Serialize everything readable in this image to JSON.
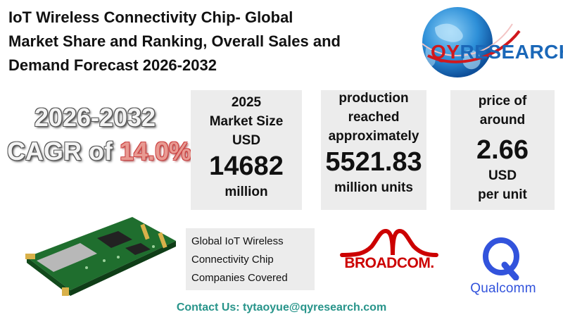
{
  "title": {
    "line1": "IoT Wireless Connectivity Chip- Global",
    "line2": "Market Share and Ranking, Overall Sales and",
    "line3": "Demand Forecast 2026-2032"
  },
  "logo": {
    "part1": "QY",
    "part2": "RESEARCH"
  },
  "cagr": {
    "years": "2026-2032",
    "label": "CAGR of ",
    "value": "14.0%"
  },
  "market_size": {
    "l1": "2025",
    "l2": "Market Size",
    "l3": "USD",
    "value": "14682",
    "unit": "million"
  },
  "production": {
    "l1": "production",
    "l2": "reached",
    "l3": "approximately",
    "value": "5521.83",
    "unit": "million units"
  },
  "price": {
    "l1": "price of",
    "l2": "around",
    "value": "2.66",
    "l3": "USD",
    "unit": "per unit"
  },
  "companies": {
    "l1": "Global IoT Wireless",
    "l2": "Connectivity Chip",
    "l3": "Companies Covered"
  },
  "brands": {
    "broadcom": "BROADCOM.",
    "qualcomm": "Qualcomm"
  },
  "contact": "Contact Us: tytaoyue@qyresearch.com",
  "colors": {
    "qy_red": "#d0181d",
    "research_blue": "#1a67b8",
    "cagr_red": "#e89a92",
    "contact_teal": "#27948a",
    "broadcom_red": "#cc0000",
    "qualcomm_blue": "#3253dc"
  }
}
